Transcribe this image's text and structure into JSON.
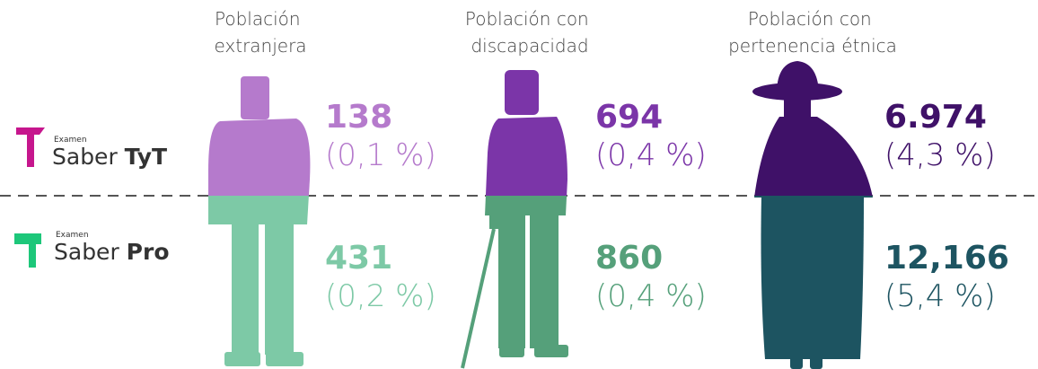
{
  "columns": [
    {
      "title_lines": [
        "Población",
        "extranjera"
      ]
    },
    {
      "title_lines": [
        "Población con",
        "discapacidad"
      ]
    },
    {
      "title_lines": [
        "Población con",
        "pertenencia étnica"
      ]
    }
  ],
  "rows": [
    {
      "exam_prefix": "Examen",
      "exam_brand": "Saber",
      "exam_name": "TyT",
      "cells": [
        {
          "value": "138",
          "percent": "(0,1 %)"
        },
        {
          "value": "694",
          "percent": "(0,4 %)"
        },
        {
          "value": "6.974",
          "percent": "(4,3 %)"
        }
      ]
    },
    {
      "exam_prefix": "Examen",
      "exam_brand": "Saber",
      "exam_name": "Pro",
      "cells": [
        {
          "value": "431",
          "percent": "(0,2 %)"
        },
        {
          "value": "860",
          "percent": "(0,4 %)"
        },
        {
          "value": "12,166",
          "percent": "(5,4 %)"
        }
      ]
    }
  ]
}
